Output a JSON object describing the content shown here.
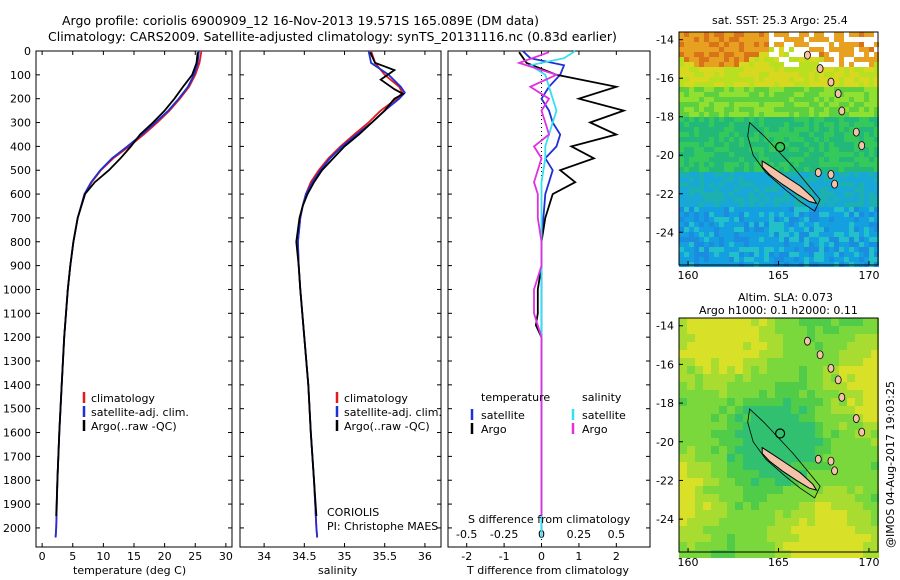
{
  "header": {
    "line1": "Argo profile: coriolis 6900909_12 16-Nov-2013 19.571S 165.089E (DM data)",
    "line2": "Climatology: CARS2009. Satellite-adjusted climatology: synTS_20131116.nc (0.83d earlier)"
  },
  "colors": {
    "climatology": "#e41a1c",
    "satellite": "#1f2fd6",
    "argo": "#000000",
    "sal_satellite": "#35e0f0",
    "sal_argo": "#e030e0"
  },
  "chart_data": [
    {
      "type": "line",
      "id": "temperature",
      "xlabel": "temperature (deg C)",
      "ylabel": "",
      "xlim": [
        -1,
        31
      ],
      "ylim": [
        0,
        2080
      ],
      "xticks": [
        0,
        5,
        10,
        15,
        20,
        25,
        30
      ],
      "yticks": [
        0,
        100,
        200,
        300,
        400,
        500,
        600,
        700,
        800,
        900,
        1000,
        1100,
        1200,
        1300,
        1400,
        1500,
        1600,
        1700,
        1800,
        1900,
        2000
      ],
      "legend": [
        "climatology",
        "satellite-adj. clim.",
        "Argo(..raw -QC)"
      ],
      "series": [
        {
          "name": "climatology",
          "color": "#e41a1c",
          "depth": [
            0,
            50,
            100,
            150,
            200,
            250,
            300,
            350,
            400,
            450,
            500,
            550,
            600,
            700,
            800,
            900,
            1000,
            1200,
            1400,
            1600,
            1800,
            2000,
            2040
          ],
          "values": [
            26.0,
            25.7,
            25.0,
            24.0,
            22.5,
            20.8,
            18.8,
            16.6,
            14.2,
            11.6,
            9.6,
            8.1,
            7.0,
            5.8,
            5.1,
            4.6,
            4.2,
            3.6,
            3.2,
            2.8,
            2.5,
            2.3,
            2.2
          ]
        },
        {
          "name": "satellite-adj. clim.",
          "color": "#1f2fd6",
          "depth": [
            0,
            50,
            100,
            150,
            200,
            250,
            300,
            350,
            400,
            450,
            500,
            550,
            600,
            700,
            800,
            900,
            1000,
            1200,
            1400,
            1600,
            1800,
            2000,
            2040
          ],
          "values": [
            25.6,
            25.4,
            24.8,
            23.8,
            22.3,
            20.6,
            18.5,
            16.3,
            13.9,
            11.4,
            9.5,
            8.0,
            6.9,
            5.8,
            5.1,
            4.6,
            4.2,
            3.6,
            3.2,
            2.8,
            2.5,
            2.3,
            2.2
          ]
        },
        {
          "name": "Argo(..raw -QC)",
          "color": "#000000",
          "depth": [
            5,
            50,
            100,
            150,
            200,
            250,
            300,
            350,
            400,
            450,
            500,
            550,
            600,
            700,
            800,
            900,
            1000,
            1200,
            1400,
            1600,
            1800,
            1950
          ],
          "values": [
            25.4,
            25.2,
            24.5,
            23.0,
            21.6,
            20.0,
            18.1,
            16.0,
            14.5,
            12.8,
            10.9,
            8.6,
            7.0,
            5.8,
            5.1,
            4.6,
            4.2,
            3.6,
            3.2,
            2.8,
            2.5,
            2.3
          ]
        }
      ]
    },
    {
      "type": "line",
      "id": "salinity",
      "xlabel": "salinity",
      "xlim": [
        33.7,
        36.2
      ],
      "ylim": [
        0,
        2080
      ],
      "xticks": [
        34,
        34.5,
        35,
        35.5,
        36
      ],
      "legend": [
        "climatology",
        "satellite-adj. clim.",
        "Argo(..raw -QC)"
      ],
      "series": [
        {
          "name": "climatology",
          "color": "#e41a1c",
          "depth": [
            0,
            50,
            100,
            150,
            175,
            200,
            250,
            300,
            350,
            400,
            450,
            500,
            550,
            600,
            650,
            700,
            800,
            900,
            1000,
            1200,
            1400,
            1600,
            1800,
            2000,
            2040
          ],
          "values": [
            35.33,
            35.38,
            35.5,
            35.68,
            35.72,
            35.65,
            35.45,
            35.3,
            35.12,
            34.95,
            34.8,
            34.68,
            34.58,
            34.52,
            34.48,
            34.45,
            34.42,
            34.43,
            34.45,
            34.5,
            34.55,
            34.58,
            34.62,
            34.65,
            34.66
          ]
        },
        {
          "name": "satellite-adj. clim.",
          "color": "#1f2fd6",
          "depth": [
            0,
            50,
            100,
            150,
            175,
            200,
            250,
            300,
            350,
            400,
            450,
            500,
            550,
            600,
            650,
            700,
            800,
            900,
            1000,
            1200,
            1400,
            1600,
            1800,
            2000,
            2040
          ],
          "values": [
            35.3,
            35.33,
            35.55,
            35.7,
            35.75,
            35.68,
            35.5,
            35.34,
            35.15,
            34.97,
            34.82,
            34.7,
            34.6,
            34.52,
            34.48,
            34.45,
            34.42,
            34.43,
            34.45,
            34.5,
            34.55,
            34.58,
            34.62,
            34.65,
            34.66
          ]
        },
        {
          "name": "Argo(..raw -QC)",
          "color": "#000000",
          "depth": [
            5,
            50,
            80,
            120,
            160,
            180,
            200,
            250,
            300,
            350,
            400,
            450,
            500,
            550,
            600,
            650,
            700,
            800,
            900,
            1000,
            1200,
            1400,
            1600,
            1800,
            1950
          ],
          "values": [
            35.32,
            35.38,
            35.62,
            35.45,
            35.62,
            35.73,
            35.62,
            35.5,
            35.34,
            35.18,
            35.0,
            34.86,
            34.72,
            34.62,
            34.54,
            34.48,
            34.44,
            34.4,
            34.43,
            34.45,
            34.5,
            34.55,
            34.58,
            34.62,
            34.65
          ]
        }
      ]
    },
    {
      "type": "line",
      "id": "difference",
      "xlabel": "T difference from climatology",
      "xlabel_top": "S difference from climatology",
      "xlim": [
        -2.5,
        2.9
      ],
      "ylim": [
        0,
        2080
      ],
      "xticks": [
        -2,
        -1,
        0,
        1,
        2
      ],
      "xticks_top_labels": [
        "-0.5",
        "-0.25",
        "0",
        "0.25",
        "0.5"
      ],
      "xticks_top_pos": [
        -2,
        -1,
        0,
        1,
        2
      ],
      "legend_temperature": {
        "title": "temperature",
        "items": [
          "satellite",
          "Argo"
        ]
      },
      "legend_salinity": {
        "title": "salinity",
        "items": [
          "satellite",
          "Argo"
        ]
      },
      "series": [
        {
          "name": "T satellite",
          "color": "#1f2fd6",
          "depth": [
            0,
            30,
            60,
            100,
            150,
            200,
            250,
            300,
            350,
            400,
            450,
            500,
            550,
            600,
            700,
            800,
            900,
            1000,
            1200,
            1400,
            1600,
            1800,
            2000,
            2040
          ],
          "values": [
            -0.5,
            -0.3,
            0.6,
            0.5,
            0.2,
            0.0,
            0.2,
            0.3,
            0.5,
            0.4,
            0.1,
            0.3,
            0.2,
            0.1,
            0.05,
            0.0,
            0.0,
            0.0,
            0.0,
            0.0,
            0.0,
            0.0,
            0.0,
            0.0
          ]
        },
        {
          "name": "T Argo",
          "color": "#000000",
          "depth": [
            5,
            50,
            100,
            150,
            200,
            250,
            300,
            350,
            400,
            450,
            500,
            550,
            600,
            650,
            700,
            800,
            900,
            1000,
            1100,
            1150,
            1200,
            1400,
            1600,
            1800,
            1950
          ],
          "values": [
            -0.6,
            -0.4,
            0.4,
            2.0,
            1.0,
            2.2,
            1.3,
            2.0,
            0.8,
            1.4,
            0.5,
            0.9,
            0.3,
            0.2,
            0.1,
            0.0,
            0.0,
            -0.1,
            -0.1,
            -0.15,
            0.0,
            0.0,
            0.0,
            0.0,
            0.0
          ]
        },
        {
          "name": "S satellite",
          "color": "#35e0f0",
          "depth": [
            0,
            30,
            60,
            100,
            150,
            200,
            250,
            300,
            350,
            400,
            450,
            500,
            550,
            600,
            700,
            800,
            900,
            1000,
            1200,
            1400,
            1600,
            1800,
            2000,
            2040
          ],
          "values": [
            0.9,
            0.6,
            -0.3,
            0.1,
            0.2,
            0.3,
            0.4,
            0.3,
            0.2,
            0.1,
            0.1,
            0.05,
            0.0,
            0.0,
            0.0,
            0.0,
            0.0,
            0.0,
            0.0,
            0.0,
            0.0,
            0.0,
            0.0,
            0.0
          ]
        },
        {
          "name": "S Argo",
          "color": "#e030e0",
          "depth": [
            5,
            50,
            100,
            150,
            200,
            250,
            300,
            350,
            400,
            450,
            500,
            550,
            600,
            700,
            800,
            900,
            1000,
            1100,
            1200,
            1400,
            1600,
            1800,
            1950
          ],
          "values": [
            0.2,
            -0.6,
            0.4,
            -0.3,
            0.2,
            0.0,
            0.1,
            0.2,
            -0.2,
            0.0,
            -0.1,
            -0.2,
            -0.1,
            -0.1,
            0.0,
            0.0,
            -0.2,
            -0.2,
            0.0,
            0.0,
            0.0,
            0.0,
            0.0
          ]
        }
      ]
    },
    {
      "type": "heatmap",
      "id": "sst_map",
      "title": "sat. SST: 25.3 Argo: 25.4",
      "xlim": [
        159.5,
        170.5
      ],
      "ylim": [
        -25.7,
        -13.6
      ],
      "xticks": [
        160,
        165,
        170
      ],
      "yticks": [
        -14,
        -16,
        -18,
        -20,
        -22,
        -24
      ],
      "marker": {
        "lon": 165.089,
        "lat": -19.571
      }
    },
    {
      "type": "heatmap",
      "id": "sla_map",
      "title": "Altim. SLA: 0.073",
      "subtitle": "Argo h1000: 0.1 h2000: 0.11",
      "xlim": [
        159.5,
        170.5
      ],
      "ylim": [
        -25.7,
        -13.6
      ],
      "xticks": [
        160,
        165,
        170
      ],
      "yticks": [
        -14,
        -16,
        -18,
        -20,
        -22,
        -24
      ],
      "marker": {
        "lon": 165.089,
        "lat": -19.571
      }
    }
  ],
  "credits": {
    "institution": "CORIOLIS",
    "pi": "PI: Christophe MAES",
    "stamp": "@IMOS 04-Aug-2017 19:03:25"
  }
}
